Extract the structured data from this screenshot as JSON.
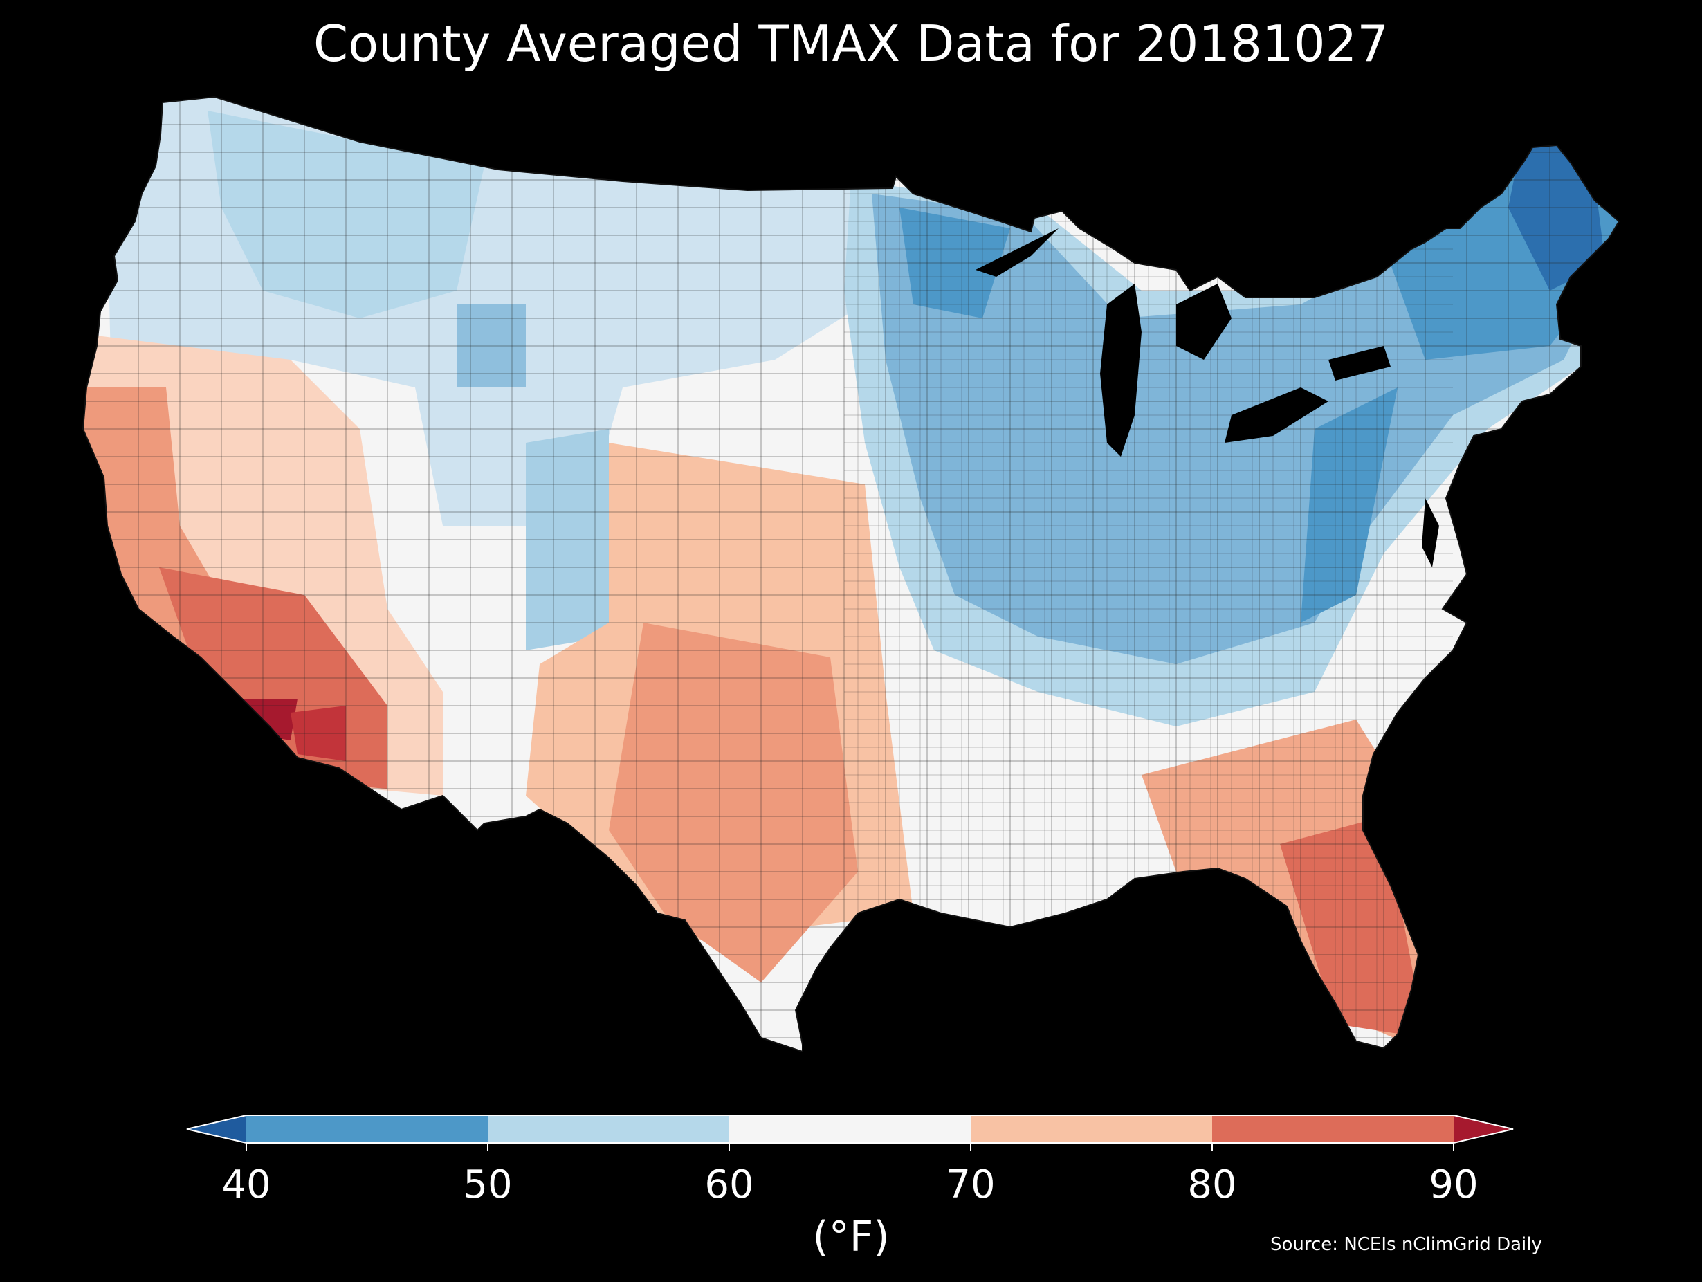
{
  "title": "County Averaged TMAX Data for 20181027",
  "colorbar": {
    "ticks": [
      "40",
      "50",
      "60",
      "70",
      "80",
      "90"
    ],
    "unit": "(°F)",
    "bins": [
      {
        "from": 40,
        "to": 50,
        "color": "#4d98c8"
      },
      {
        "from": 50,
        "to": 60,
        "color": "#b5d8ea"
      },
      {
        "from": 60,
        "to": 70,
        "color": "#f5f5f5"
      },
      {
        "from": 70,
        "to": 80,
        "color": "#f8c2a4"
      },
      {
        "from": 80,
        "to": 90,
        "color": "#dd6c59"
      }
    ],
    "under_color": "#1f5b9e",
    "over_color": "#a6192e"
  },
  "source": "Source: NCEIs nClimGrid Daily",
  "map": {
    "region": "Contiguous United States",
    "background": "#000000",
    "border_color": "#222222"
  }
}
